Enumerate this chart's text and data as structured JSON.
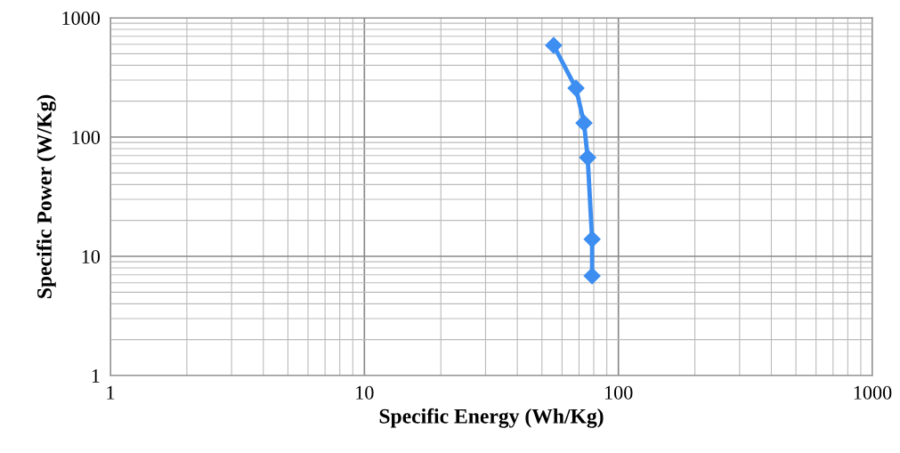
{
  "chart_data": {
    "type": "line",
    "xlabel": "Specific Energy (Wh/Kg)",
    "ylabel": "Specific Power (W/Kg)",
    "log": "xy",
    "xlim": [
      1,
      1000
    ],
    "ylim": [
      1,
      1000
    ],
    "xticks": [
      1,
      10,
      100,
      1000
    ],
    "yticks": [
      1,
      10,
      100,
      1000
    ],
    "grid": true,
    "marker": "diamond",
    "line_style": "solid",
    "series": [
      {
        "color": "#3d8ef0",
        "x": [
          55.6,
          68.1,
          73.2,
          75.7,
          78.8,
          78.8
        ],
        "values": [
          587,
          257,
          131,
          67.3,
          13.9,
          6.85
        ]
      }
    ]
  }
}
